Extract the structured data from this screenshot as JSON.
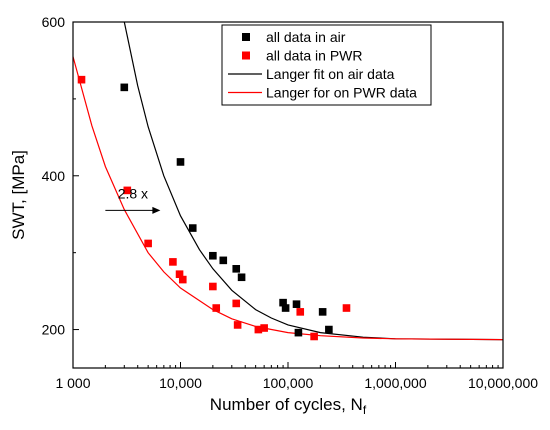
{
  "chart_data": {
    "type": "scatter",
    "xlabel": "Number of cycles, N",
    "xlabel_sub": "f",
    "ylabel": "SWT, [MPa]",
    "x_scale": "log",
    "xlim": [
      1000,
      10000000
    ],
    "ylim": [
      150,
      600
    ],
    "x_ticks": [
      {
        "value": 1000,
        "label": "1 000"
      },
      {
        "value": 10000,
        "label": "10,000"
      },
      {
        "value": 100000,
        "label": "100,000"
      },
      {
        "value": 1000000,
        "label": "1,000,000"
      },
      {
        "value": 10000000,
        "label": "10,000,000"
      }
    ],
    "y_ticks": [
      {
        "value": 200,
        "label": "200"
      },
      {
        "value": 400,
        "label": "400"
      },
      {
        "value": 600,
        "label": "600"
      }
    ],
    "grid": false,
    "legend_position": "top-right",
    "annotation": {
      "text": "2.8 x",
      "at_y": 355,
      "from_x": 2000,
      "to_x": 6500
    },
    "series": [
      {
        "name": "all data in air",
        "kind": "points",
        "color": "#000000",
        "points": [
          [
            3000,
            515
          ],
          [
            10000,
            418
          ],
          [
            13000,
            332
          ],
          [
            20000,
            296
          ],
          [
            25000,
            290
          ],
          [
            33000,
            279
          ],
          [
            37000,
            268
          ],
          [
            90000,
            235
          ],
          [
            95000,
            228
          ],
          [
            120000,
            233
          ],
          [
            125000,
            196
          ],
          [
            210000,
            223
          ],
          [
            240000,
            200
          ]
        ]
      },
      {
        "name": "all data in PWR",
        "kind": "points",
        "color": "#ff0000",
        "points": [
          [
            1200,
            525
          ],
          [
            3200,
            381
          ],
          [
            5000,
            312
          ],
          [
            8500,
            288
          ],
          [
            9800,
            272
          ],
          [
            10500,
            265
          ],
          [
            20000,
            256
          ],
          [
            21500,
            228
          ],
          [
            33000,
            234
          ],
          [
            34000,
            206
          ],
          [
            53000,
            200
          ],
          [
            60000,
            202
          ],
          [
            130000,
            223
          ],
          [
            175000,
            191
          ],
          [
            350000,
            228
          ]
        ]
      },
      {
        "name": "Langer fit on air data",
        "kind": "curve",
        "color": "#000000",
        "points": [
          [
            3000,
            600
          ],
          [
            4000,
            517
          ],
          [
            5000,
            464
          ],
          [
            7000,
            400
          ],
          [
            10000,
            348
          ],
          [
            15000,
            304
          ],
          [
            20000,
            279
          ],
          [
            30000,
            251
          ],
          [
            50000,
            226
          ],
          [
            70000,
            215
          ],
          [
            100000,
            206
          ],
          [
            200000,
            196
          ],
          [
            500000,
            190
          ],
          [
            1000000,
            188
          ],
          [
            10000000,
            187
          ]
        ]
      },
      {
        "name": "Langer for on PWR data",
        "kind": "curve",
        "color": "#ff0000",
        "points": [
          [
            1000,
            555
          ],
          [
            1500,
            465
          ],
          [
            2000,
            412
          ],
          [
            3000,
            356
          ],
          [
            5000,
            300
          ],
          [
            7000,
            275
          ],
          [
            10000,
            254
          ],
          [
            20000,
            226
          ],
          [
            30000,
            214
          ],
          [
            50000,
            204
          ],
          [
            100000,
            196
          ],
          [
            200000,
            192
          ],
          [
            500000,
            189
          ],
          [
            1000000,
            188
          ],
          [
            10000000,
            187
          ]
        ]
      }
    ]
  }
}
